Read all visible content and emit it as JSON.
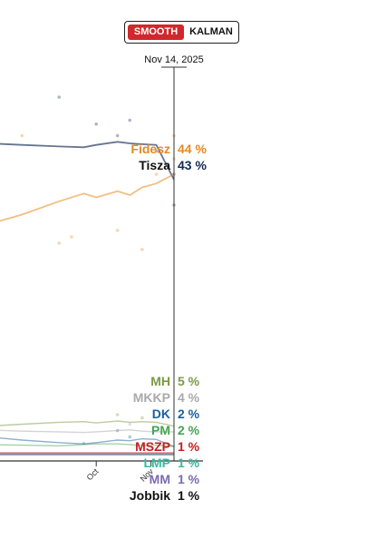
{
  "toggle": {
    "smooth_label": "SMOOTH",
    "kalman_label": "KALMAN",
    "active": "SMOOTH"
  },
  "chart_data": {
    "type": "line",
    "cursor_date": "Nov 14, 2025",
    "x": [
      "2025-08-01",
      "2025-08-20",
      "2025-09-10",
      "2025-09-24",
      "2025-10-01",
      "2025-10-13",
      "2025-10-20",
      "2025-10-27",
      "2025-11-04",
      "2025-11-14"
    ],
    "x_ticks": [
      "Oct",
      "Nov"
    ],
    "ylim": [
      0,
      60
    ],
    "series": [
      {
        "name": "Fidesz",
        "value_label": "44 %",
        "color": "#e8891e",
        "values": [
          37,
          38.5,
          40.5,
          41.5,
          41,
          41.8,
          41.3,
          42.3,
          42.8,
          44
        ]
      },
      {
        "name": "Tisza",
        "value_label": "43 %",
        "color": "#142a55",
        "values": [
          48,
          47.8,
          47.6,
          47.5,
          47.8,
          48.2,
          48,
          47.9,
          47.8,
          43.3
        ]
      },
      {
        "name": "MH",
        "value_label": "5 %",
        "color": "#7a9a46",
        "values": [
          5.2,
          5.5,
          5.8,
          5.9,
          5.7,
          6.0,
          5.8,
          5.9,
          5.8,
          5.2
        ]
      },
      {
        "name": "MKKP",
        "value_label": "4 %",
        "color": "#aaaaaa",
        "values": [
          4.6,
          4.4,
          4.3,
          4.2,
          4.3,
          4.5,
          4.6,
          4.4,
          4.3,
          4.3
        ]
      },
      {
        "name": "DK",
        "value_label": "2 %",
        "color": "#1d5fa1",
        "values": [
          3.5,
          3.0,
          2.6,
          2.4,
          2.6,
          3.0,
          2.9,
          3.2,
          3.1,
          2.0
        ]
      },
      {
        "name": "PM",
        "value_label": "2 %",
        "color": "#45a553",
        "values": [
          2.3,
          2.2,
          2.1,
          2.3,
          2.4,
          2.4,
          2.3,
          2.1,
          2.2,
          2.0
        ]
      },
      {
        "name": "MSZP",
        "value_label": "1 %",
        "color": "#c41e1e",
        "values": [
          1.0,
          1.0,
          1.0,
          1.0,
          1.0,
          1.0,
          1.0,
          1.0,
          1.0,
          1.0
        ]
      },
      {
        "name": "LMP",
        "value_label": "1 %",
        "color": "#3ab8a0",
        "values": [
          0.9,
          0.9,
          0.9,
          0.9,
          0.9,
          0.9,
          0.9,
          0.9,
          0.9,
          0.9
        ]
      },
      {
        "name": "MM",
        "value_label": "1 %",
        "color": "#7a6bb0",
        "values": [
          0.8,
          0.8,
          0.8,
          0.8,
          0.8,
          0.8,
          0.8,
          0.8,
          0.8,
          0.8
        ]
      },
      {
        "name": "Jobbik",
        "value_label": "1 %",
        "color": "#111111",
        "values": [
          0.7,
          0.7,
          0.7,
          0.7,
          0.7,
          0.7,
          0.7,
          0.7,
          0.7,
          0.7
        ]
      }
    ],
    "polls": [
      {
        "series": "Tisza",
        "x": "2025-09-10",
        "y": 54
      },
      {
        "series": "Tisza",
        "x": "2025-10-01",
        "y": 50.5
      },
      {
        "series": "Tisza",
        "x": "2025-10-13",
        "y": 49
      },
      {
        "series": "Tisza",
        "x": "2025-10-20",
        "y": 51
      },
      {
        "series": "Tisza",
        "x": "2025-11-04",
        "y": 47
      },
      {
        "series": "Tisza",
        "x": "2025-11-14",
        "y": 40
      },
      {
        "series": "Tisza",
        "x": "2025-11-14",
        "y": 44
      },
      {
        "series": "Fidesz",
        "x": "2025-08-20",
        "y": 49
      },
      {
        "series": "Fidesz",
        "x": "2025-09-10",
        "y": 34
      },
      {
        "series": "Fidesz",
        "x": "2025-09-17",
        "y": 35
      },
      {
        "series": "Fidesz",
        "x": "2025-10-13",
        "y": 36
      },
      {
        "series": "Fidesz",
        "x": "2025-10-27",
        "y": 33
      },
      {
        "series": "Fidesz",
        "x": "2025-11-04",
        "y": 44
      },
      {
        "series": "Fidesz",
        "x": "2025-11-14",
        "y": 46
      },
      {
        "series": "Fidesz",
        "x": "2025-11-14",
        "y": 49
      },
      {
        "series": "DK",
        "x": "2025-10-13",
        "y": 4.5
      },
      {
        "series": "DK",
        "x": "2025-10-20",
        "y": 3.5
      },
      {
        "series": "MH",
        "x": "2025-10-13",
        "y": 7
      },
      {
        "series": "MH",
        "x": "2025-10-27",
        "y": 6.5
      },
      {
        "series": "MKKP",
        "x": "2025-10-20",
        "y": 5.5
      },
      {
        "series": "PM",
        "x": "2025-09-24",
        "y": 2.5
      }
    ]
  }
}
